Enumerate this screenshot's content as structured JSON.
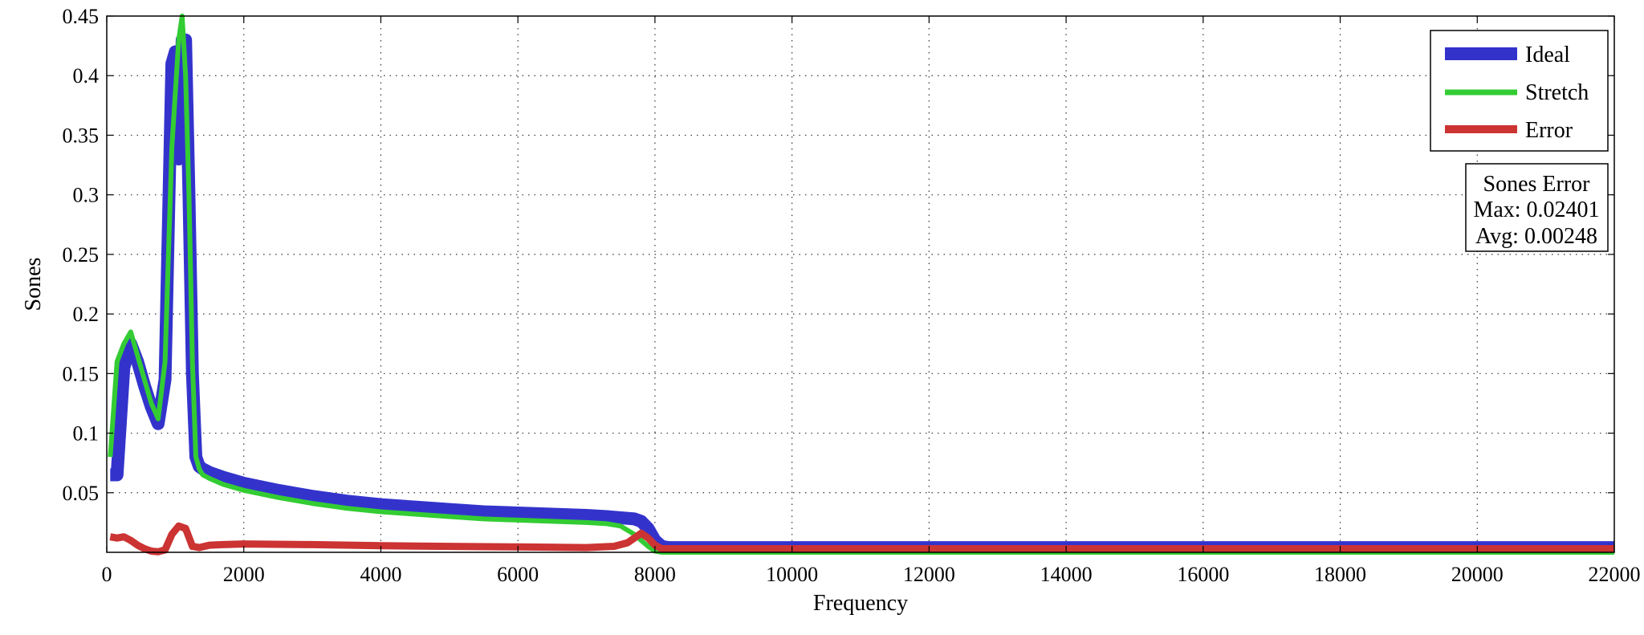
{
  "chart_data": {
    "type": "line",
    "xlabel": "Frequency",
    "ylabel": "Sones",
    "xlim": [
      0,
      22000
    ],
    "ylim": [
      0,
      0.45
    ],
    "xticks": [
      0,
      2000,
      4000,
      6000,
      8000,
      10000,
      12000,
      14000,
      16000,
      18000,
      20000,
      22000
    ],
    "xtick_labels": [
      "0",
      "2000",
      "4000",
      "6000",
      "8000",
      "10000",
      "12000",
      "14000",
      "16000",
      "18000",
      "20000",
      "22000"
    ],
    "yticks": [
      0.05,
      0.1,
      0.15,
      0.2,
      0.25,
      0.3,
      0.35,
      0.4,
      0.45
    ],
    "ytick_labels": [
      "0.05",
      "0.1",
      "0.15",
      "0.2",
      "0.25",
      "0.3",
      "0.35",
      "0.4",
      "0.45"
    ],
    "grid": true,
    "legend_position": "top-right",
    "series": [
      {
        "name": "Ideal",
        "color": "#3333cc",
        "x": [
          50,
          150,
          250,
          350,
          450,
          550,
          650,
          750,
          850,
          950,
          1000,
          1050,
          1100,
          1150,
          1200,
          1250,
          1300,
          1350,
          1400,
          1500,
          1700,
          2000,
          2500,
          3000,
          3500,
          4000,
          4500,
          5000,
          5500,
          6000,
          6500,
          7000,
          7300,
          7500,
          7700,
          7800,
          7900,
          8000,
          8100,
          8200,
          8400,
          9000,
          10000,
          12000,
          14000,
          16000,
          18000,
          20000,
          22000
        ],
        "y": [
          0.065,
          0.065,
          0.155,
          0.175,
          0.16,
          0.14,
          0.122,
          0.108,
          0.145,
          0.41,
          0.42,
          0.33,
          0.43,
          0.43,
          0.3,
          0.15,
          0.08,
          0.072,
          0.07,
          0.067,
          0.063,
          0.058,
          0.052,
          0.047,
          0.043,
          0.04,
          0.038,
          0.036,
          0.034,
          0.033,
          0.032,
          0.031,
          0.03,
          0.029,
          0.028,
          0.026,
          0.02,
          0.01,
          0.005,
          0.004,
          0.004,
          0.004,
          0.004,
          0.004,
          0.004,
          0.004,
          0.004,
          0.004,
          0.004
        ]
      },
      {
        "name": "Stretch",
        "color": "#33cc33",
        "x": [
          50,
          150,
          250,
          350,
          450,
          550,
          650,
          750,
          850,
          950,
          1050,
          1100,
          1150,
          1200,
          1250,
          1300,
          1350,
          1400,
          1500,
          1700,
          2000,
          2500,
          3000,
          3500,
          4000,
          4500,
          5000,
          5500,
          6000,
          6500,
          7000,
          7300,
          7500,
          7700,
          7800,
          7900,
          8000,
          8100,
          8200,
          9000,
          10000,
          12000,
          14000,
          16000,
          18000,
          20000,
          22000
        ],
        "y": [
          0.08,
          0.16,
          0.175,
          0.185,
          0.165,
          0.145,
          0.125,
          0.112,
          0.16,
          0.34,
          0.43,
          0.45,
          0.4,
          0.3,
          0.16,
          0.08,
          0.07,
          0.065,
          0.062,
          0.057,
          0.052,
          0.046,
          0.041,
          0.037,
          0.034,
          0.032,
          0.03,
          0.028,
          0.027,
          0.026,
          0.025,
          0.024,
          0.022,
          0.015,
          0.01,
          0.005,
          0.001,
          0.0,
          0.0,
          0.0,
          0.0,
          0.0,
          0.0,
          0.0,
          0.0,
          0.0,
          0.0
        ]
      },
      {
        "name": "Error",
        "color": "#cc3333",
        "x": [
          50,
          150,
          250,
          350,
          450,
          550,
          650,
          750,
          850,
          950,
          1050,
          1150,
          1250,
          1350,
          1500,
          1700,
          2000,
          3000,
          4000,
          5000,
          6000,
          7000,
          7400,
          7600,
          7700,
          7800,
          7900,
          8000,
          8100,
          8200,
          9000,
          10000,
          12000,
          14000,
          16000,
          18000,
          20000,
          22000
        ],
        "y": [
          0.013,
          0.012,
          0.013,
          0.01,
          0.006,
          0.003,
          0.001,
          0.0005,
          0.002,
          0.015,
          0.022,
          0.02,
          0.005,
          0.004,
          0.006,
          0.0065,
          0.007,
          0.0065,
          0.0055,
          0.005,
          0.0045,
          0.004,
          0.005,
          0.008,
          0.012,
          0.016,
          0.012,
          0.006,
          0.003,
          0.003,
          0.003,
          0.003,
          0.003,
          0.003,
          0.003,
          0.003,
          0.003,
          0.003
        ]
      }
    ],
    "stats_box": {
      "title": "Sones Error",
      "max_line": "Max: 0.02401",
      "avg_line": "Avg: 0.00248"
    }
  }
}
